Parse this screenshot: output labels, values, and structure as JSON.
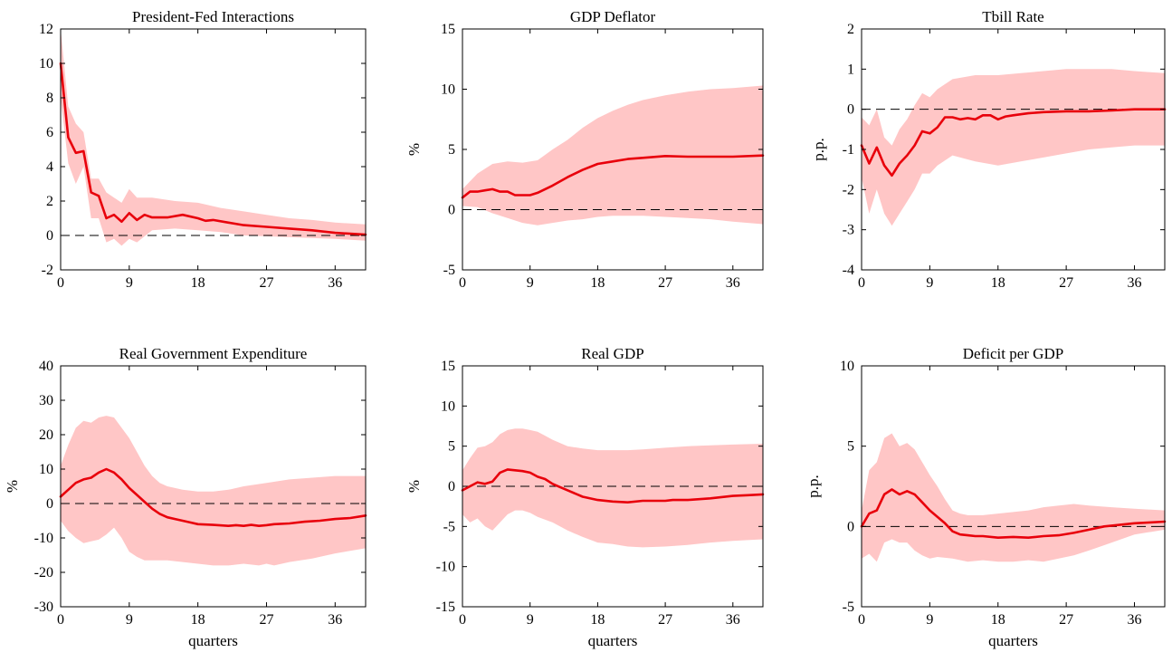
{
  "colors": {
    "line": "#e8000b",
    "band": "#ffc6c6",
    "zero_line": "#000000"
  },
  "chart_data": [
    {
      "type": "area",
      "title": "President-Fed Interactions",
      "xlabel": "",
      "ylabel": "",
      "xlim": [
        0,
        40
      ],
      "ylim": [
        -2,
        12
      ],
      "xticks": [
        0,
        9,
        18,
        27,
        36
      ],
      "yticks": [
        -2,
        0,
        2,
        4,
        6,
        8,
        10,
        12
      ],
      "zero_line": true,
      "series": [
        {
          "role": "point-estimate",
          "x": [
            0,
            1,
            2,
            3,
            4,
            5,
            6,
            7,
            8,
            9,
            10,
            11,
            12,
            14,
            16,
            18,
            19,
            20,
            22,
            24,
            27,
            30,
            33,
            36,
            40
          ],
          "y": [
            10,
            5.7,
            4.8,
            4.9,
            2.5,
            2.3,
            1.0,
            1.2,
            0.8,
            1.3,
            0.9,
            1.2,
            1.05,
            1.05,
            1.2,
            1.0,
            0.85,
            0.9,
            0.75,
            0.6,
            0.5,
            0.4,
            0.3,
            0.15,
            0.05
          ]
        },
        {
          "role": "band-upper",
          "x": [
            0,
            1,
            2,
            3,
            4,
            5,
            6,
            8,
            9,
            10,
            12,
            15,
            18,
            21,
            24,
            27,
            30,
            33,
            36,
            40
          ],
          "y": [
            12,
            7.5,
            6.5,
            6.0,
            3.3,
            3.3,
            2.5,
            1.9,
            2.7,
            2.2,
            2.2,
            2.0,
            1.9,
            1.6,
            1.4,
            1.2,
            1.0,
            0.9,
            0.75,
            0.65
          ]
        },
        {
          "role": "band-lower",
          "x": [
            0,
            1,
            2,
            3,
            4,
            5,
            6,
            7,
            8,
            9,
            10,
            12,
            15,
            18,
            21,
            24,
            27,
            30,
            33,
            36,
            40
          ],
          "y": [
            8.0,
            4.2,
            3.0,
            4.0,
            1.0,
            1.0,
            -0.4,
            -0.2,
            -0.6,
            -0.2,
            -0.4,
            0.3,
            0.4,
            0.3,
            0.2,
            0.0,
            -0.05,
            -0.1,
            -0.15,
            -0.2,
            -0.3
          ]
        }
      ]
    },
    {
      "type": "area",
      "title": "GDP Deflator",
      "xlabel": "",
      "ylabel": "%",
      "xlim": [
        0,
        40
      ],
      "ylim": [
        -5,
        15
      ],
      "xticks": [
        0,
        9,
        18,
        27,
        36
      ],
      "yticks": [
        -5,
        0,
        5,
        10,
        15
      ],
      "zero_line": true,
      "series": [
        {
          "role": "point-estimate",
          "x": [
            0,
            1,
            2,
            3,
            4,
            5,
            6,
            7,
            8,
            9,
            10,
            12,
            14,
            16,
            18,
            20,
            22,
            24,
            27,
            30,
            33,
            36,
            40
          ],
          "y": [
            1.0,
            1.5,
            1.5,
            1.6,
            1.7,
            1.5,
            1.5,
            1.2,
            1.2,
            1.2,
            1.4,
            2.0,
            2.7,
            3.3,
            3.8,
            4.0,
            4.2,
            4.3,
            4.45,
            4.4,
            4.4,
            4.4,
            4.5
          ]
        },
        {
          "role": "band-upper",
          "x": [
            0,
            2,
            4,
            6,
            8,
            10,
            12,
            14,
            16,
            18,
            20,
            22,
            24,
            27,
            30,
            33,
            36,
            40
          ],
          "y": [
            1.7,
            3.0,
            3.8,
            4.0,
            3.9,
            4.1,
            5.0,
            5.8,
            6.8,
            7.6,
            8.2,
            8.7,
            9.1,
            9.5,
            9.8,
            10.0,
            10.1,
            10.3
          ]
        },
        {
          "role": "band-lower",
          "x": [
            0,
            2,
            4,
            6,
            8,
            10,
            12,
            14,
            16,
            18,
            20,
            22,
            24,
            27,
            30,
            33,
            36,
            40
          ],
          "y": [
            0.3,
            0.2,
            -0.3,
            -0.7,
            -1.1,
            -1.3,
            -1.1,
            -0.9,
            -0.8,
            -0.6,
            -0.5,
            -0.5,
            -0.5,
            -0.6,
            -0.7,
            -0.8,
            -1.0,
            -1.2
          ]
        }
      ]
    },
    {
      "type": "area",
      "title": "Tbill Rate",
      "xlabel": "",
      "ylabel": "p.p.",
      "xlim": [
        0,
        40
      ],
      "ylim": [
        -4,
        2
      ],
      "xticks": [
        0,
        9,
        18,
        27,
        36
      ],
      "yticks": [
        -4,
        -3,
        -2,
        -1,
        0,
        1,
        2
      ],
      "zero_line": true,
      "series": [
        {
          "role": "point-estimate",
          "x": [
            0,
            1,
            2,
            3,
            4,
            5,
            6,
            7,
            8,
            9,
            10,
            11,
            12,
            13,
            14,
            15,
            16,
            17,
            18,
            19,
            20,
            22,
            24,
            27,
            30,
            33,
            36,
            40
          ],
          "y": [
            -0.9,
            -1.35,
            -0.95,
            -1.4,
            -1.65,
            -1.35,
            -1.15,
            -0.9,
            -0.55,
            -0.6,
            -0.45,
            -0.2,
            -0.2,
            -0.25,
            -0.22,
            -0.25,
            -0.15,
            -0.15,
            -0.25,
            -0.18,
            -0.15,
            -0.1,
            -0.07,
            -0.05,
            -0.05,
            -0.03,
            0.0,
            0.0
          ]
        },
        {
          "role": "band-upper",
          "x": [
            0,
            1,
            2,
            3,
            4,
            5,
            6,
            7,
            8,
            9,
            10,
            12,
            15,
            18,
            21,
            24,
            27,
            30,
            33,
            36,
            40
          ],
          "y": [
            -0.2,
            -0.4,
            0.0,
            -0.7,
            -0.9,
            -0.5,
            -0.25,
            0.1,
            0.4,
            0.3,
            0.5,
            0.75,
            0.85,
            0.85,
            0.9,
            0.95,
            1.0,
            1.0,
            1.0,
            0.95,
            0.9
          ]
        },
        {
          "role": "band-lower",
          "x": [
            0,
            1,
            2,
            3,
            4,
            5,
            6,
            7,
            8,
            9,
            10,
            12,
            15,
            18,
            21,
            24,
            27,
            30,
            33,
            36,
            40
          ],
          "y": [
            -1.7,
            -2.6,
            -2.0,
            -2.6,
            -2.9,
            -2.6,
            -2.3,
            -2.0,
            -1.6,
            -1.6,
            -1.4,
            -1.15,
            -1.3,
            -1.4,
            -1.3,
            -1.2,
            -1.1,
            -1.0,
            -0.95,
            -0.9,
            -0.9
          ]
        }
      ]
    },
    {
      "type": "area",
      "title": "Real Government Expenditure",
      "xlabel": "quarters",
      "ylabel": "%",
      "xlim": [
        0,
        40
      ],
      "ylim": [
        -30,
        40
      ],
      "xticks": [
        0,
        9,
        18,
        27,
        36
      ],
      "yticks": [
        -30,
        -20,
        -10,
        0,
        10,
        20,
        30,
        40
      ],
      "zero_line": true,
      "series": [
        {
          "role": "point-estimate",
          "x": [
            0,
            1,
            2,
            3,
            4,
            5,
            6,
            7,
            8,
            9,
            10,
            11,
            12,
            13,
            14,
            15,
            16,
            17,
            18,
            20,
            22,
            23,
            24,
            25,
            26,
            27,
            28,
            30,
            32,
            34,
            36,
            38,
            40
          ],
          "y": [
            2,
            4,
            6,
            7,
            7.5,
            9,
            10,
            9,
            7,
            4.5,
            2.5,
            0.5,
            -1.5,
            -3,
            -4,
            -4.5,
            -5,
            -5.5,
            -6,
            -6.2,
            -6.5,
            -6.3,
            -6.5,
            -6.2,
            -6.5,
            -6.3,
            -6,
            -5.8,
            -5.3,
            -5,
            -4.5,
            -4.2,
            -3.5
          ]
        },
        {
          "role": "band-upper",
          "x": [
            0,
            1,
            2,
            3,
            4,
            5,
            6,
            7,
            8,
            9,
            10,
            11,
            12,
            13,
            14,
            15,
            16,
            18,
            20,
            22,
            24,
            27,
            30,
            33,
            36,
            40
          ],
          "y": [
            11,
            17,
            22,
            24,
            23.5,
            25,
            25.5,
            25,
            22,
            19,
            15,
            11,
            8,
            6,
            5,
            4.5,
            4,
            3.5,
            3.5,
            4,
            5,
            6,
            7,
            7.5,
            8,
            8
          ]
        },
        {
          "role": "band-lower",
          "x": [
            0,
            1,
            2,
            3,
            4,
            5,
            6,
            7,
            8,
            9,
            10,
            11,
            12,
            14,
            16,
            18,
            20,
            22,
            24,
            26,
            27,
            28,
            30,
            33,
            36,
            40
          ],
          "y": [
            -5,
            -8,
            -10,
            -11.5,
            -11,
            -10.5,
            -9,
            -7,
            -10,
            -14,
            -15.5,
            -16.5,
            -16.5,
            -16.5,
            -17,
            -17.5,
            -18,
            -18,
            -17.5,
            -18,
            -17.5,
            -18,
            -17,
            -16,
            -14.5,
            -13
          ]
        }
      ]
    },
    {
      "type": "area",
      "title": "Real GDP",
      "xlabel": "quarters",
      "ylabel": "%",
      "xlim": [
        0,
        40
      ],
      "ylim": [
        -15,
        15
      ],
      "xticks": [
        0,
        9,
        18,
        27,
        36
      ],
      "yticks": [
        -15,
        -10,
        -5,
        0,
        5,
        10,
        15
      ],
      "zero_line": true,
      "series": [
        {
          "role": "point-estimate",
          "x": [
            0,
            1,
            2,
            3,
            4,
            5,
            6,
            7,
            8,
            9,
            10,
            11,
            12,
            13,
            14,
            16,
            18,
            20,
            22,
            24,
            27,
            28,
            30,
            33,
            36,
            38,
            40
          ],
          "y": [
            -0.5,
            0.0,
            0.5,
            0.3,
            0.6,
            1.7,
            2.1,
            2.0,
            1.9,
            1.7,
            1.2,
            0.9,
            0.3,
            -0.1,
            -0.5,
            -1.3,
            -1.7,
            -1.9,
            -2.0,
            -1.8,
            -1.8,
            -1.7,
            -1.7,
            -1.5,
            -1.2,
            -1.1,
            -1.0
          ]
        },
        {
          "role": "band-upper",
          "x": [
            0,
            1,
            2,
            3,
            4,
            5,
            6,
            7,
            8,
            9,
            10,
            11,
            12,
            14,
            16,
            18,
            20,
            22,
            24,
            27,
            30,
            33,
            36,
            40
          ],
          "y": [
            2.0,
            3.5,
            4.8,
            5.0,
            5.5,
            6.5,
            7.0,
            7.2,
            7.2,
            7.0,
            6.8,
            6.3,
            5.8,
            5.0,
            4.7,
            4.5,
            4.5,
            4.5,
            4.6,
            4.8,
            5.0,
            5.1,
            5.2,
            5.3
          ]
        },
        {
          "role": "band-lower",
          "x": [
            0,
            1,
            2,
            3,
            4,
            5,
            6,
            7,
            8,
            9,
            10,
            12,
            14,
            16,
            18,
            20,
            22,
            24,
            27,
            30,
            33,
            36,
            40
          ],
          "y": [
            -3.5,
            -4.5,
            -4.0,
            -5.0,
            -5.5,
            -4.5,
            -3.5,
            -3.0,
            -3.0,
            -3.3,
            -3.8,
            -4.5,
            -5.5,
            -6.3,
            -7.0,
            -7.2,
            -7.5,
            -7.6,
            -7.5,
            -7.3,
            -7.0,
            -6.8,
            -6.6
          ]
        }
      ]
    },
    {
      "type": "area",
      "title": "Deficit per GDP",
      "xlabel": "quarters",
      "ylabel": "p.p.",
      "xlim": [
        0,
        40
      ],
      "ylim": [
        -5,
        10
      ],
      "xticks": [
        0,
        9,
        18,
        27,
        36
      ],
      "yticks": [
        -5,
        0,
        5,
        10
      ],
      "zero_line": true,
      "series": [
        {
          "role": "point-estimate",
          "x": [
            0,
            1,
            2,
            3,
            4,
            5,
            6,
            7,
            8,
            9,
            10,
            11,
            12,
            13,
            14,
            15,
            16,
            18,
            20,
            22,
            24,
            26,
            28,
            30,
            32,
            34,
            36,
            38,
            40
          ],
          "y": [
            0.0,
            0.8,
            1.0,
            2.0,
            2.3,
            2.0,
            2.2,
            2.0,
            1.5,
            1.0,
            0.6,
            0.2,
            -0.3,
            -0.5,
            -0.55,
            -0.6,
            -0.6,
            -0.7,
            -0.65,
            -0.7,
            -0.6,
            -0.55,
            -0.4,
            -0.2,
            0.0,
            0.1,
            0.2,
            0.25,
            0.3
          ]
        },
        {
          "role": "band-upper",
          "x": [
            0,
            1,
            2,
            3,
            4,
            5,
            6,
            7,
            8,
            9,
            10,
            11,
            12,
            13,
            14,
            15,
            16,
            18,
            20,
            22,
            24,
            26,
            28,
            30,
            33,
            36,
            40
          ],
          "y": [
            1.0,
            3.5,
            4.0,
            5.5,
            5.8,
            5.0,
            5.2,
            4.8,
            4.0,
            3.2,
            2.5,
            1.7,
            1.0,
            0.8,
            0.7,
            0.7,
            0.7,
            0.8,
            0.9,
            1.0,
            1.2,
            1.3,
            1.4,
            1.3,
            1.2,
            1.1,
            1.0
          ]
        },
        {
          "role": "band-lower",
          "x": [
            0,
            1,
            2,
            3,
            4,
            5,
            6,
            7,
            8,
            9,
            10,
            12,
            14,
            16,
            18,
            20,
            22,
            24,
            26,
            28,
            30,
            33,
            36,
            40
          ],
          "y": [
            -2.0,
            -1.7,
            -2.2,
            -1.0,
            -0.8,
            -1.0,
            -1.0,
            -1.5,
            -1.8,
            -2.0,
            -1.9,
            -2.0,
            -2.2,
            -2.1,
            -2.2,
            -2.2,
            -2.1,
            -2.2,
            -2.0,
            -1.8,
            -1.5,
            -1.0,
            -0.5,
            -0.2
          ]
        }
      ]
    }
  ]
}
